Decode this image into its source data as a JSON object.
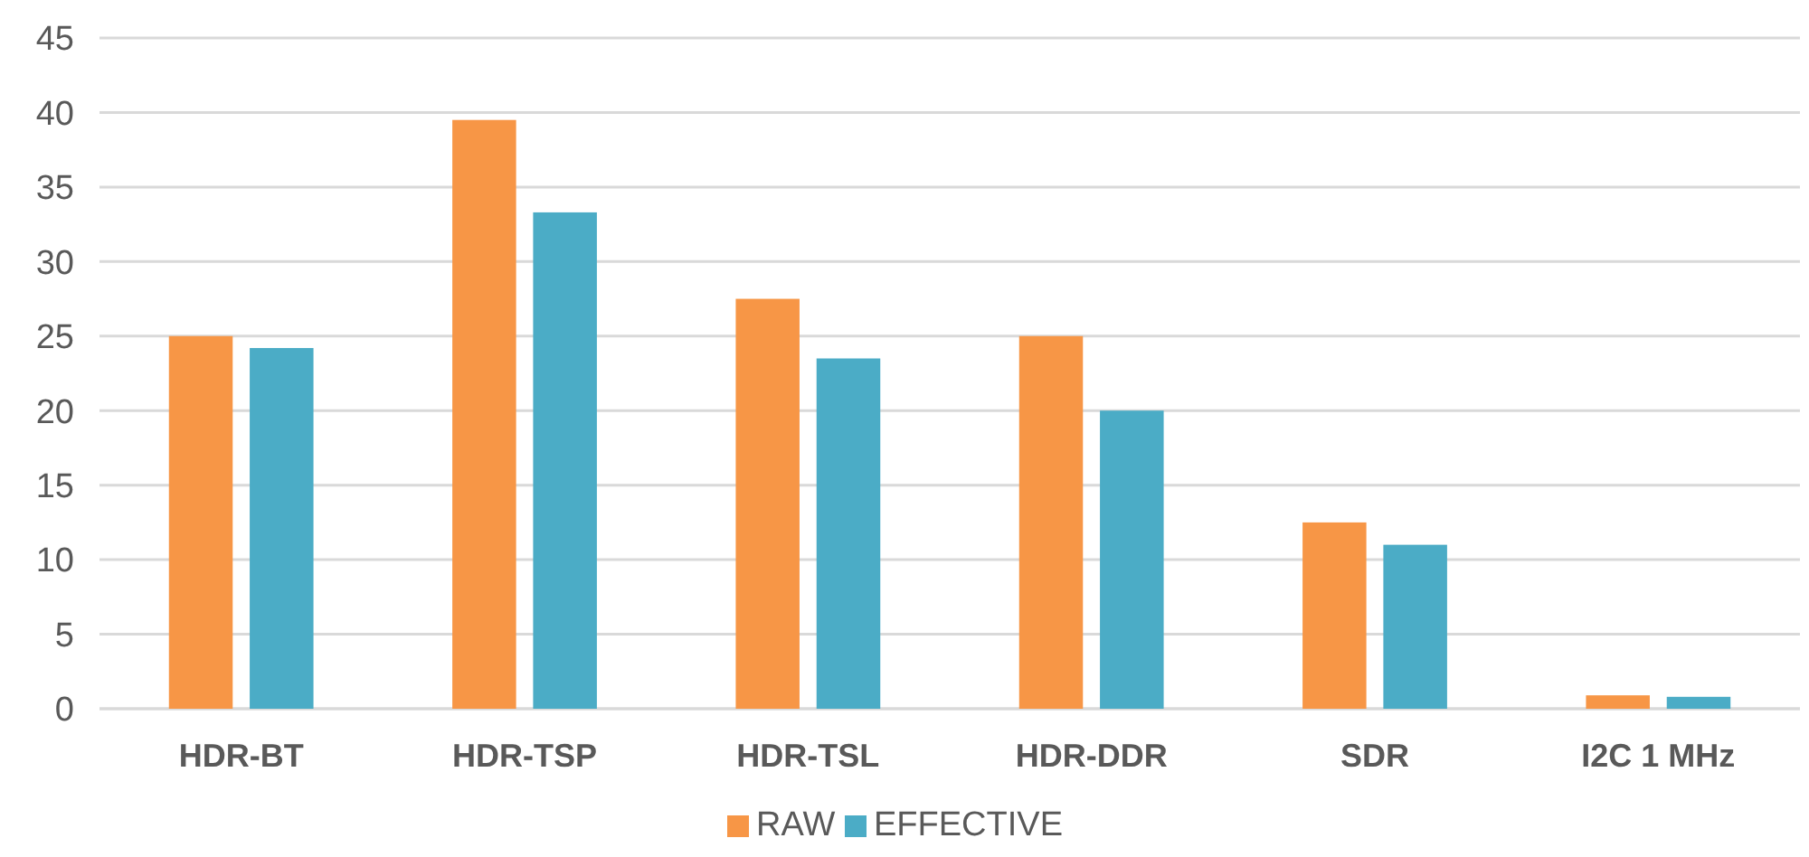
{
  "chart_data": {
    "type": "bar",
    "categories": [
      "HDR-BT",
      "HDR-TSP",
      "HDR-TSL",
      "HDR-DDR",
      "SDR",
      "I2C 1 MHz"
    ],
    "series": [
      {
        "name": "RAW",
        "color": "#f79646",
        "values": [
          25,
          39.5,
          27.5,
          25,
          12.5,
          0.9
        ]
      },
      {
        "name": "EFFECTIVE",
        "color": "#4bacc6",
        "values": [
          24.2,
          33.3,
          23.5,
          20,
          11,
          0.8
        ]
      }
    ],
    "ylim": [
      0,
      45
    ],
    "yticks": [
      0,
      5,
      10,
      15,
      20,
      25,
      30,
      35,
      40,
      45
    ],
    "grid": "y",
    "legend": "bottom"
  }
}
